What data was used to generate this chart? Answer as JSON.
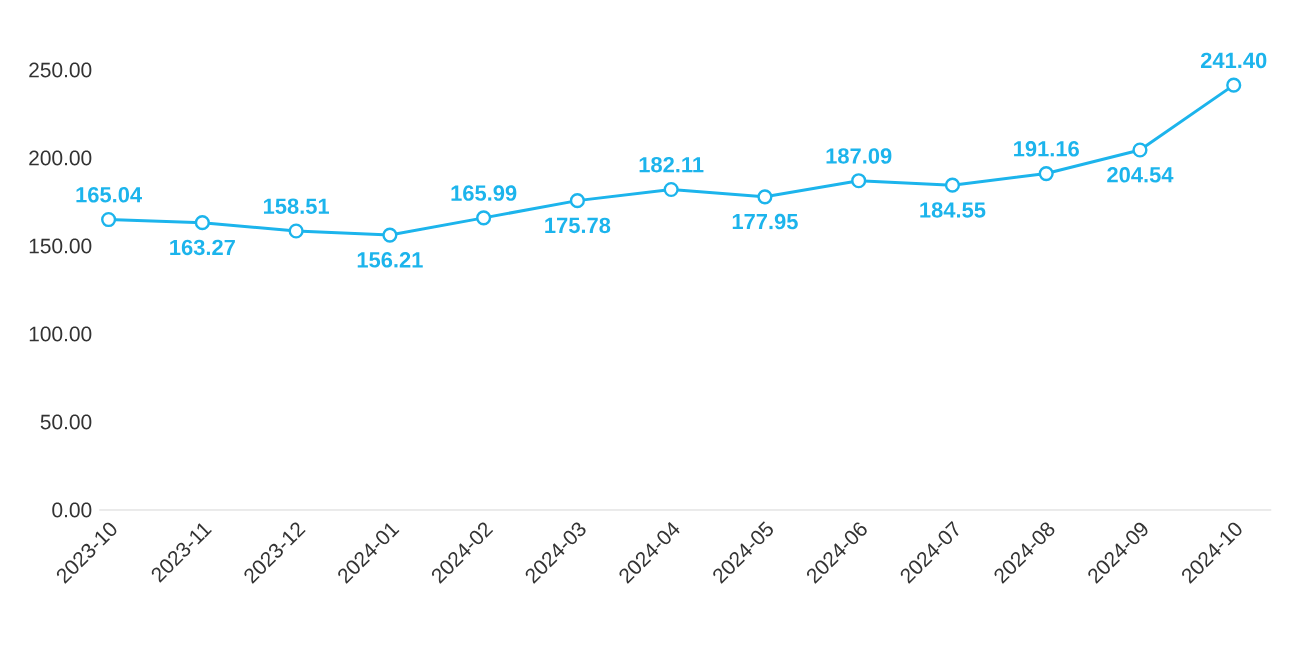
{
  "chart_data": {
    "type": "line",
    "categories": [
      "2023-10",
      "2023-11",
      "2023-12",
      "2024-01",
      "2024-02",
      "2024-03",
      "2024-04",
      "2024-05",
      "2024-06",
      "2024-07",
      "2024-08",
      "2024-09",
      "2024-10"
    ],
    "values": [
      165.04,
      163.27,
      158.51,
      156.21,
      165.99,
      175.78,
      182.11,
      177.95,
      187.09,
      184.55,
      191.16,
      204.54,
      241.4
    ],
    "value_labels": [
      "165.04",
      "163.27",
      "158.51",
      "156.21",
      "165.99",
      "175.78",
      "182.11",
      "177.95",
      "187.09",
      "184.55",
      "191.16",
      "204.54",
      "241.40"
    ],
    "color": "#1cb4ec",
    "marker": "circle",
    "line_style": "solid",
    "ylim": [
      0,
      250
    ],
    "yticks": [
      {
        "value": 0,
        "label": "0.00"
      },
      {
        "value": 50,
        "label": "50.00"
      },
      {
        "value": 100,
        "label": "100.00"
      },
      {
        "value": 150,
        "label": "150.00"
      },
      {
        "value": 200,
        "label": "200.00"
      },
      {
        "value": 250,
        "label": "250.00"
      }
    ]
  }
}
